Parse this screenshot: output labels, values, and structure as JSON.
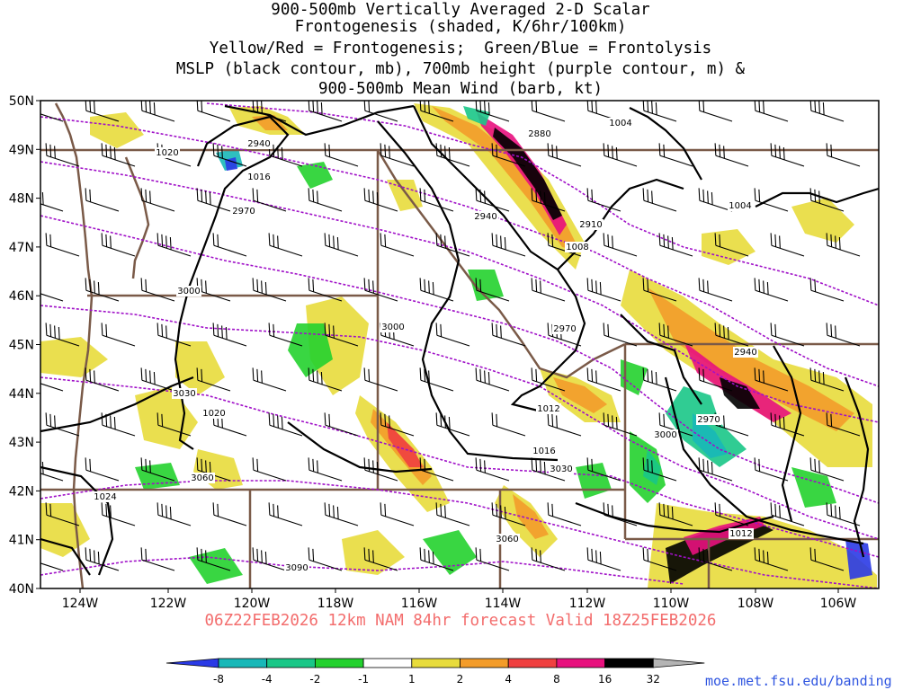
{
  "title_lines": [
    "900-500mb Vertically Averaged 2-D Scalar",
    "Frontogenesis (shaded, K/6hr/100km)",
    "Yellow/Red = Frontogenesis;  Green/Blue = Frontolysis",
    "MSLP (black contour, mb), 700mb height (purple contour, m) &",
    "900-500mb Mean Wind (barb, kt)"
  ],
  "valid_line": "06Z22FEB2026 12km NAM 84hr forecast Valid 18Z25FEB2026",
  "credit": "moe.met.fsu.edu/banding",
  "lat_labels": [
    "50N",
    "49N",
    "48N",
    "47N",
    "46N",
    "45N",
    "44N",
    "43N",
    "42N",
    "41N",
    "40N"
  ],
  "lon_labels": [
    "124W",
    "122W",
    "120W",
    "118W",
    "116W",
    "114W",
    "112W",
    "110W",
    "108W",
    "106W"
  ],
  "mslp_contour_labels": [
    "1004",
    "1004",
    "1008",
    "1012",
    "1012",
    "1016",
    "1016",
    "1020",
    "1020",
    "1024"
  ],
  "height_contour_labels": [
    "2880",
    "2910",
    "2940",
    "2940",
    "2940",
    "2970",
    "2970",
    "2970",
    "3000",
    "3000",
    "3000",
    "3030",
    "3030",
    "3060",
    "3060",
    "3090"
  ],
  "colorbar": {
    "labels": [
      "-8",
      "-4",
      "-2",
      "-1",
      "1",
      "2",
      "4",
      "8",
      "16",
      "32"
    ],
    "colors": [
      "#2a3ae6",
      "#18b8b8",
      "#19c787",
      "#23d12e",
      "#ffffff",
      "#e8dc3c",
      "#f39c2a",
      "#f04040",
      "#e8117e",
      "#000000",
      "#b4b4b4"
    ]
  },
  "colors": {
    "mslp": "#000000",
    "height": "#a010c8",
    "borders": "#7a5a48",
    "valid_text": "#f36d6d",
    "credit_text": "#2f55e0"
  }
}
